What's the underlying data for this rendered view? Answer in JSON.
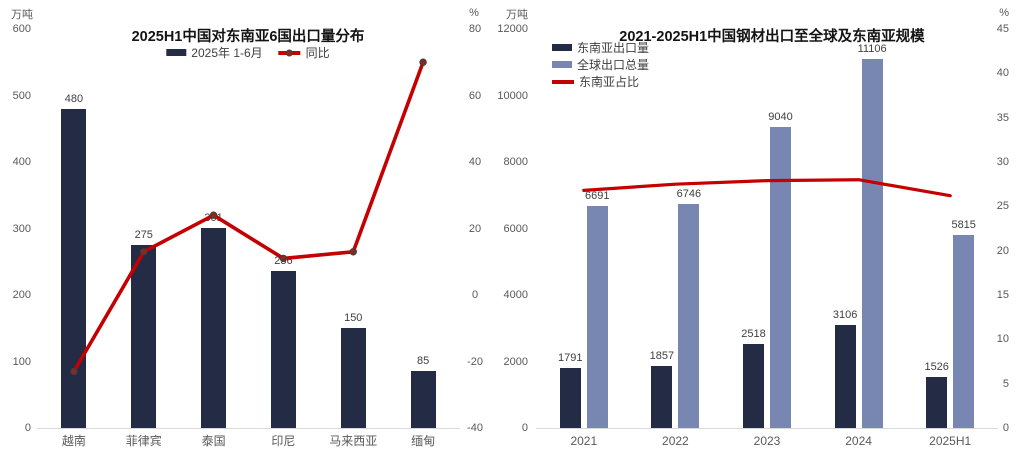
{
  "charts": [
    {
      "title": "2025H1中国对东南亚6国出口量分布",
      "unit_left": "万吨",
      "unit_right": "%",
      "chart_type": "bar+line",
      "categories": [
        "越南",
        "菲律宾",
        "泰国",
        "印尼",
        "马来西亚",
        "缅甸"
      ],
      "bar_series": [
        {
          "name": "2025年 1-6月",
          "color": "#232c44",
          "values": [
            480,
            275,
            301,
            236,
            150,
            85
          ]
        }
      ],
      "line_series": {
        "name": "同比",
        "color": "#c40000",
        "marker_color": "#8f2420",
        "values": [
          -23,
          13,
          24,
          11,
          13,
          70
        ]
      },
      "y_left": {
        "min": 0,
        "max": 600,
        "step": 100
      },
      "y_right": {
        "min": -40,
        "max": 80,
        "step": 20
      },
      "legend_position": "top-center"
    },
    {
      "title": "2021-2025H1中国钢材出口至全球及东南亚规模",
      "unit_left": "万吨",
      "unit_right": "%",
      "chart_type": "bar+line",
      "categories": [
        "2021",
        "2022",
        "2023",
        "2024",
        "2025H1"
      ],
      "bar_series": [
        {
          "name": "东南亚出口量",
          "color": "#232c44",
          "values": [
            1791,
            1857,
            2518,
            3106,
            1526
          ]
        },
        {
          "name": "全球出口总量",
          "color": "#7787b2",
          "values": [
            6691,
            6746,
            9040,
            11106,
            5815
          ]
        }
      ],
      "line_series": {
        "name": "东南亚占比",
        "color": "#c40000",
        "values": [
          26.8,
          27.5,
          27.9,
          28.0,
          26.2
        ]
      },
      "y_left": {
        "min": 0,
        "max": 12000,
        "step": 2000
      },
      "y_right": {
        "min": 0,
        "max": 45,
        "step": 5
      },
      "legend_position": "top-left-stack"
    }
  ]
}
